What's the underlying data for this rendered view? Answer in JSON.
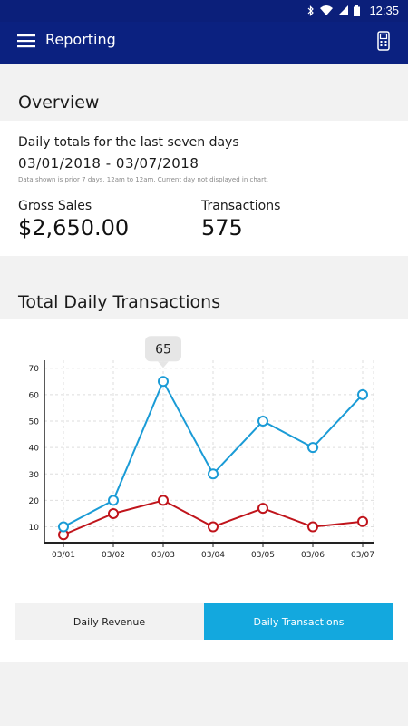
{
  "status_bar": {
    "time": "12:35",
    "icons": [
      "bluetooth-icon",
      "wifi-icon",
      "signal-icon",
      "battery-icon"
    ]
  },
  "app_bar": {
    "title": "Reporting",
    "menu_icon": "hamburger-menu-icon",
    "action_icon": "card-terminal-icon"
  },
  "overview": {
    "title": "Overview",
    "subtitle": "Daily totals for the last seven days",
    "date_range": "03/01/2018 - 03/07/2018",
    "note": "Data shown is prior 7 days, 12am to 12am. Current day not displayed in chart.",
    "gross_sales_label": "Gross Sales",
    "gross_sales_value": "$2,650.00",
    "transactions_label": "Transactions",
    "transactions_value": "575"
  },
  "chart_section": {
    "title": "Total Daily Transactions"
  },
  "chart_data": {
    "type": "line",
    "categories": [
      "03/01",
      "03/02",
      "03/03",
      "03/04",
      "03/05",
      "03/06",
      "03/07"
    ],
    "series": [
      {
        "name": "",
        "color": "#1a9bd6",
        "values": [
          10,
          20,
          65,
          30,
          50,
          40,
          60
        ]
      },
      {
        "name": "",
        "color": "#c0141b",
        "values": [
          7,
          15,
          20,
          10,
          17,
          10,
          12
        ]
      }
    ],
    "ylim": [
      4,
      73
    ],
    "yticks": [
      10,
      20,
      30,
      40,
      50,
      60,
      70
    ],
    "grid": true,
    "tooltip": {
      "text": "65",
      "series": 0,
      "index": 2
    }
  },
  "tabs": {
    "items": [
      {
        "label": "Daily Revenue",
        "active": false
      },
      {
        "label": "Daily Transactions",
        "active": true
      }
    ]
  }
}
